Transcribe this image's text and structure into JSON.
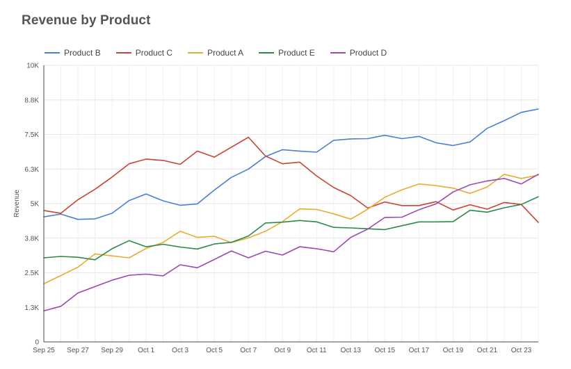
{
  "chart_data": {
    "type": "line",
    "title": "Revenue by Product",
    "ylabel": "Revenue",
    "xlabel": "",
    "ylim": [
      0,
      10000
    ],
    "yticks": [
      {
        "value": 0,
        "label": "0"
      },
      {
        "value": 1250,
        "label": "1.3K"
      },
      {
        "value": 2500,
        "label": "2.5K"
      },
      {
        "value": 3750,
        "label": "3.8K"
      },
      {
        "value": 5000,
        "label": "5K"
      },
      {
        "value": 6250,
        "label": "6.3K"
      },
      {
        "value": 7500,
        "label": "7.5K"
      },
      {
        "value": 8750,
        "label": "8.8K"
      },
      {
        "value": 10000,
        "label": "10K"
      }
    ],
    "x": [
      "Sep 25",
      "Sep 26",
      "Sep 27",
      "Sep 28",
      "Sep 29",
      "Sep 30",
      "Oct 1",
      "Oct 2",
      "Oct 3",
      "Oct 4",
      "Oct 5",
      "Oct 6",
      "Oct 7",
      "Oct 8",
      "Oct 9",
      "Oct 10",
      "Oct 11",
      "Oct 12",
      "Oct 13",
      "Oct 14",
      "Oct 15",
      "Oct 16",
      "Oct 17",
      "Oct 18",
      "Oct 19",
      "Oct 20",
      "Oct 21",
      "Oct 22",
      "Oct 23",
      "Oct 24"
    ],
    "xtick_labels": [
      "Sep 25",
      "Sep 27",
      "Sep 29",
      "Oct 1",
      "Oct 3",
      "Oct 5",
      "Oct 7",
      "Oct 9",
      "Oct 11",
      "Oct 13",
      "Oct 15",
      "Oct 17",
      "Oct 19",
      "Oct 21",
      "Oct 23"
    ],
    "legend_position": "top-left",
    "grid": true,
    "series": [
      {
        "name": "Product B",
        "color": "#4a7fd4",
        "values": [
          4520,
          4620,
          4430,
          4450,
          4650,
          5110,
          5350,
          5100,
          4940,
          4990,
          5490,
          5950,
          6250,
          6700,
          6950,
          6900,
          6860,
          7290,
          7340,
          7350,
          7470,
          7350,
          7430,
          7200,
          7100,
          7230,
          7720,
          8000,
          8300,
          8420
        ]
      },
      {
        "name": "Product C",
        "color": "#cc4233",
        "values": [
          4750,
          4650,
          5140,
          5520,
          5960,
          6440,
          6610,
          6560,
          6420,
          6900,
          6680,
          7040,
          7400,
          6720,
          6440,
          6500,
          6000,
          5580,
          5290,
          4840,
          5060,
          4930,
          4930,
          5070,
          4770,
          4960,
          4800,
          5040,
          4970,
          4320
        ]
      },
      {
        "name": "Product A",
        "color": "#e8ad2e",
        "values": [
          2100,
          2400,
          2700,
          3180,
          3110,
          3040,
          3380,
          3600,
          4000,
          3780,
          3820,
          3590,
          3760,
          4000,
          4350,
          4810,
          4790,
          4630,
          4440,
          4800,
          5230,
          5500,
          5710,
          5650,
          5560,
          5370,
          5600,
          6060,
          5910,
          6030
        ]
      },
      {
        "name": "Product E",
        "color": "#2b8a4a",
        "values": [
          3040,
          3090,
          3060,
          2970,
          3370,
          3660,
          3440,
          3530,
          3430,
          3360,
          3540,
          3600,
          3830,
          4300,
          4330,
          4390,
          4340,
          4140,
          4120,
          4090,
          4060,
          4200,
          4340,
          4340,
          4350,
          4760,
          4690,
          4850,
          4970,
          5250
        ]
      },
      {
        "name": "Product D",
        "color": "#9a48b6",
        "values": [
          1120,
          1290,
          1770,
          2000,
          2230,
          2410,
          2450,
          2390,
          2790,
          2680,
          2980,
          3290,
          3040,
          3280,
          3140,
          3440,
          3370,
          3260,
          3780,
          4080,
          4500,
          4510,
          4780,
          4990,
          5420,
          5680,
          5820,
          5910,
          5710,
          6060
        ]
      }
    ]
  }
}
